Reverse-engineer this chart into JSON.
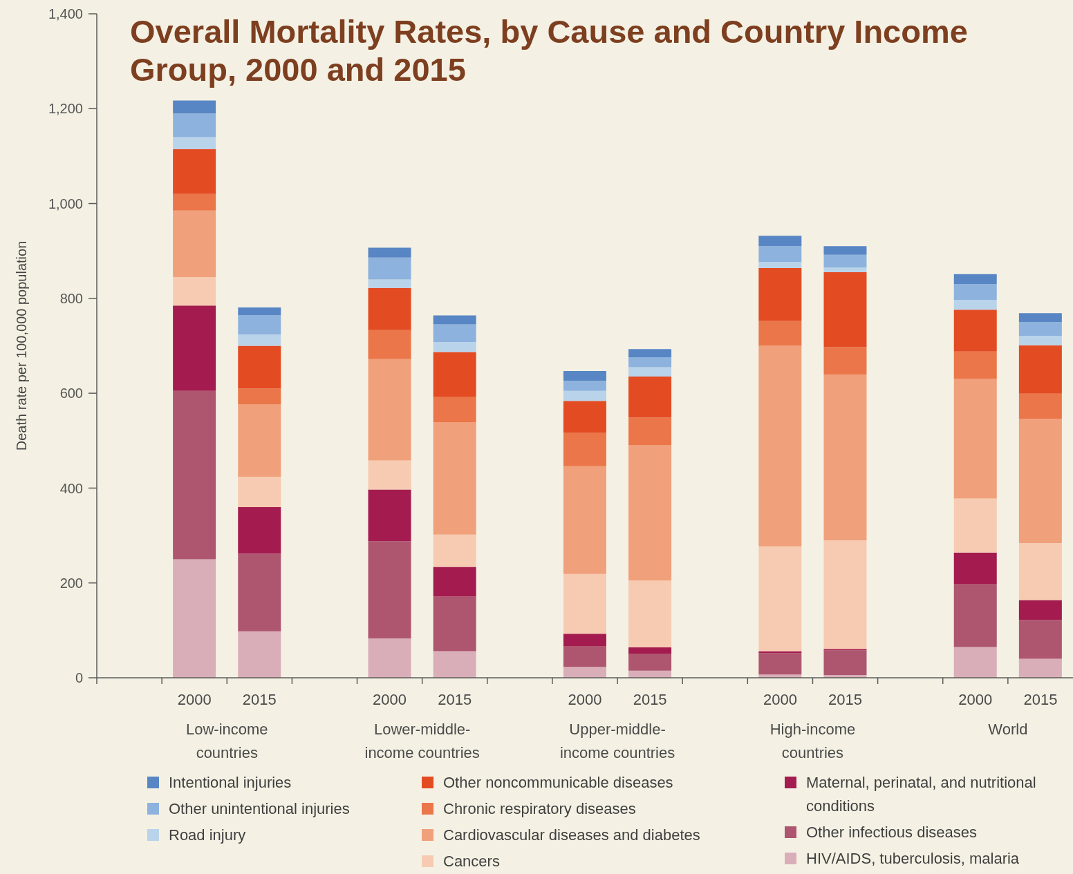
{
  "chart_data": {
    "type": "bar",
    "title": "Overall Mortality Rates, by Cause and Country Income Group, 2000 and 2015",
    "ylabel": "Death rate per 100,000 population",
    "categories": [
      null,
      "2000",
      "2015",
      null,
      "2000",
      "2015",
      null,
      "2000",
      "2015",
      null,
      "2000",
      "2015",
      null,
      "2000",
      "2015"
    ],
    "series": [
      {
        "name": "HIV/AIDS, tuberculosis, malaria",
        "color": "#d9aeb8",
        "values": [
          null,
          250,
          98,
          null,
          83,
          56,
          null,
          23,
          15,
          null,
          7,
          6,
          null,
          65,
          40
        ]
      },
      {
        "name": "Other infectious diseases",
        "color": "#ae566f",
        "values": [
          null,
          355,
          164,
          null,
          205,
          115,
          null,
          44,
          36,
          null,
          45,
          52,
          null,
          133,
          82
        ]
      },
      {
        "name": "Maternal, perinatal, and nutritional conditions",
        "color": "#a31b4f",
        "values": [
          null,
          180,
          98,
          null,
          109,
          63,
          null,
          26,
          13,
          null,
          4,
          3,
          null,
          66,
          42
        ]
      },
      {
        "name": "Cancers",
        "color": "#f6cbb2",
        "values": [
          null,
          60,
          64,
          null,
          61,
          68,
          null,
          126,
          141,
          null,
          221,
          229,
          null,
          114,
          120
        ]
      },
      {
        "name": "Cardiovascular diseases and diabetes",
        "color": "#f0a07a",
        "values": [
          null,
          140,
          153,
          null,
          214,
          237,
          null,
          227,
          286,
          null,
          423,
          349,
          null,
          252,
          262
        ]
      },
      {
        "name": "Chronic respiratory diseases",
        "color": "#ea7649",
        "values": [
          null,
          35,
          33,
          null,
          61,
          53,
          null,
          71,
          58,
          null,
          53,
          58,
          null,
          58,
          53
        ]
      },
      {
        "name": "Other noncommunicable diseases",
        "color": "#e34b22",
        "values": [
          null,
          95,
          90,
          null,
          89,
          95,
          null,
          67,
          86,
          null,
          111,
          158,
          null,
          88,
          102
        ]
      },
      {
        "name": "Road injury",
        "color": "#b9d3ea",
        "values": [
          null,
          25,
          24,
          null,
          18,
          21,
          null,
          21,
          20,
          null,
          13,
          10,
          null,
          21,
          20
        ]
      },
      {
        "name": "Other unintentional injuries",
        "color": "#8db2de",
        "values": [
          null,
          50,
          41,
          null,
          46,
          37,
          null,
          21,
          21,
          null,
          33,
          27,
          null,
          33,
          29
        ]
      },
      {
        "name": "Intentional injuries",
        "color": "#5886c4",
        "values": [
          null,
          27,
          16,
          null,
          21,
          19,
          null,
          21,
          17,
          null,
          22,
          18,
          null,
          21,
          19
        ]
      }
    ],
    "stacked": true,
    "ylim": [
      0,
      1400
    ],
    "yticks": [
      0,
      200,
      400,
      600,
      800,
      {
        "value": 1000,
        "label": "1,000"
      },
      {
        "value": 1200,
        "label": "1,200"
      },
      {
        "value": 1400,
        "label": "1,400"
      }
    ],
    "legend": "bottom",
    "annotations": [
      "Low-income countries",
      "Lower-middle-income countries",
      "Upper-middle-income countries",
      "High-income countries",
      "World"
    ]
  }
}
